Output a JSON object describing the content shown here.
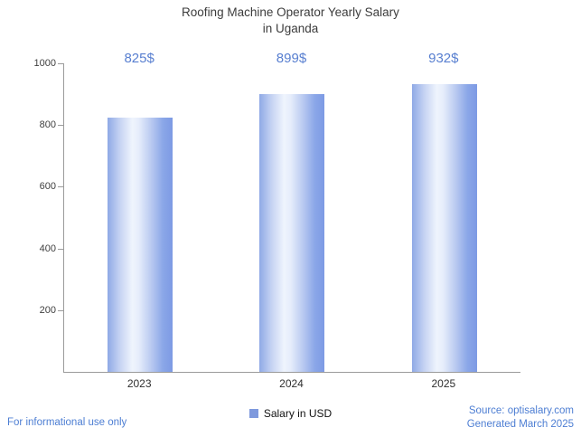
{
  "title": {
    "line1": "Roofing Machine Operator Yearly Salary",
    "line2": "in Uganda"
  },
  "chart_data": {
    "type": "bar",
    "title": "Roofing Machine Operator Yearly Salary in Uganda",
    "categories": [
      "2023",
      "2024",
      "2025"
    ],
    "values": [
      825,
      899,
      932
    ],
    "value_labels": [
      "825$",
      "899$",
      "932$"
    ],
    "ylim": [
      0,
      1000
    ],
    "yticks": [
      200,
      400,
      600,
      800,
      1000
    ],
    "grid": false,
    "legend": {
      "label": "Salary in USD",
      "position": "bottom"
    },
    "bar_color": "#7d9ae4",
    "value_label_color": "#587fd0"
  },
  "footer": {
    "disclaimer": "For informational use only",
    "source": "Source: optisalary.com",
    "generated": "Generated March 2025"
  }
}
